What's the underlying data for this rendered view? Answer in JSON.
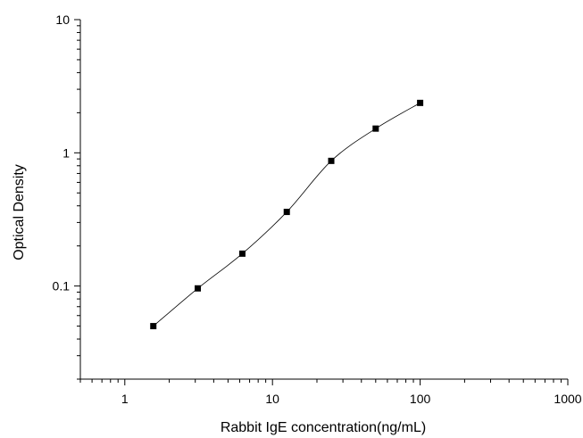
{
  "chart_data": {
    "type": "scatter",
    "title": "",
    "xlabel": "Rabbit IgE concentration(ng/mL)",
    "ylabel": "Optical Density",
    "xscale": "log",
    "yscale": "log",
    "xlim": [
      0.5,
      1000
    ],
    "ylim": [
      0.02,
      10
    ],
    "x_ticks": [
      "1",
      "10",
      "100",
      "1000"
    ],
    "y_ticks": [
      "0.1",
      "1",
      "10"
    ],
    "grid": false,
    "marker": "square",
    "colors": {
      "axis": "#000000",
      "points": "#000000",
      "curve": "#000000"
    },
    "points": [
      {
        "x": 1.56,
        "y": 0.05
      },
      {
        "x": 3.12,
        "y": 0.096
      },
      {
        "x": 6.25,
        "y": 0.175
      },
      {
        "x": 12.5,
        "y": 0.36
      },
      {
        "x": 25,
        "y": 0.87
      },
      {
        "x": 50,
        "y": 1.52
      },
      {
        "x": 100,
        "y": 2.37
      }
    ],
    "fit_curve": true
  }
}
